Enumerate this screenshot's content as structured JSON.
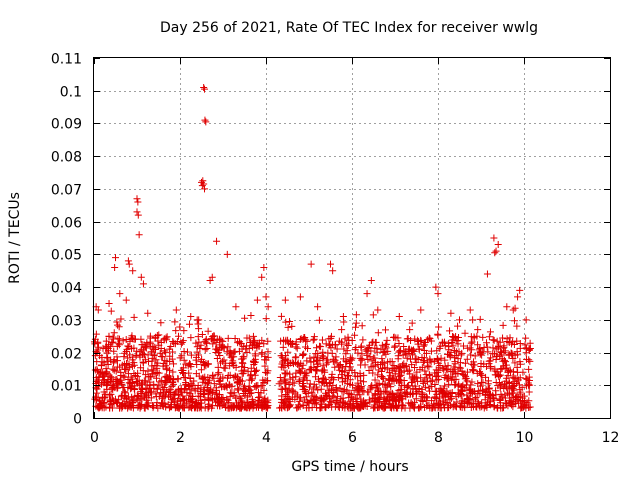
{
  "chart_data": {
    "type": "scatter",
    "title": "Day 256 of 2021, Rate Of TEC Index for receiver wwlg",
    "xlabel": "GPS time / hours",
    "ylabel": "ROTI / TECUs",
    "xlim": [
      0,
      12
    ],
    "ylim": [
      0,
      0.11
    ],
    "xticks": [
      0,
      2,
      4,
      6,
      8,
      10,
      12
    ],
    "xtick_labels": [
      "0",
      "2",
      "4",
      "6",
      "8",
      "10",
      "12"
    ],
    "yticks": [
      0,
      0.01,
      0.02,
      0.03,
      0.04,
      0.05,
      0.06,
      0.07,
      0.08,
      0.09,
      0.1,
      0.11
    ],
    "ytick_labels": [
      "0",
      "0.01",
      "0.02",
      "0.03",
      "0.04",
      "0.05",
      "0.06",
      "0.07",
      "0.08",
      "0.09",
      "0.1",
      "0.11"
    ],
    "grid": true,
    "marker": "+",
    "color": "#e00000",
    "data_coverage_hours": [
      0,
      10.15
    ],
    "data_gap_hours": [
      4.05,
      4.3
    ],
    "baseline_range": [
      0.003,
      0.025
    ],
    "series": [
      {
        "name": "ROTI",
        "points": [
          [
            2.55,
            0.101
          ],
          [
            2.57,
            0.1005
          ],
          [
            2.58,
            0.091
          ],
          [
            2.6,
            0.0905
          ],
          [
            2.5,
            0.072
          ],
          [
            2.52,
            0.071
          ],
          [
            2.55,
            0.0715
          ],
          [
            2.57,
            0.07
          ],
          [
            2.53,
            0.0725
          ],
          [
            1.0,
            0.067
          ],
          [
            1.02,
            0.066
          ],
          [
            1.0,
            0.063
          ],
          [
            1.03,
            0.062
          ],
          [
            1.05,
            0.056
          ],
          [
            2.85,
            0.054
          ],
          [
            3.1,
            0.05
          ],
          [
            9.3,
            0.055
          ],
          [
            9.35,
            0.051
          ],
          [
            9.32,
            0.0505
          ],
          [
            9.4,
            0.053
          ],
          [
            0.5,
            0.049
          ],
          [
            0.48,
            0.046
          ],
          [
            0.8,
            0.048
          ],
          [
            0.82,
            0.047
          ],
          [
            0.9,
            0.045
          ],
          [
            1.1,
            0.043
          ],
          [
            1.15,
            0.041
          ],
          [
            3.95,
            0.046
          ],
          [
            3.9,
            0.043
          ],
          [
            4.0,
            0.037
          ],
          [
            4.05,
            0.034
          ],
          [
            5.05,
            0.047
          ],
          [
            5.5,
            0.047
          ],
          [
            5.55,
            0.045
          ],
          [
            6.45,
            0.042
          ],
          [
            7.95,
            0.04
          ],
          [
            8.0,
            0.038
          ],
          [
            9.15,
            0.044
          ],
          [
            9.9,
            0.039
          ],
          [
            9.85,
            0.037
          ],
          [
            2.75,
            0.043
          ],
          [
            2.7,
            0.042
          ],
          [
            0.05,
            0.034
          ],
          [
            0.1,
            0.033
          ],
          [
            0.35,
            0.035
          ],
          [
            0.6,
            0.038
          ],
          [
            0.75,
            0.036
          ],
          [
            1.25,
            0.032
          ],
          [
            2.25,
            0.031
          ],
          [
            2.4,
            0.03
          ],
          [
            3.3,
            0.034
          ],
          [
            3.8,
            0.036
          ],
          [
            4.45,
            0.036
          ],
          [
            4.8,
            0.037
          ],
          [
            5.2,
            0.034
          ],
          [
            5.8,
            0.031
          ],
          [
            6.1,
            0.029
          ],
          [
            6.35,
            0.038
          ],
          [
            6.6,
            0.033
          ],
          [
            7.1,
            0.031
          ],
          [
            7.4,
            0.029
          ],
          [
            7.6,
            0.033
          ],
          [
            8.3,
            0.032
          ],
          [
            8.5,
            0.03
          ],
          [
            8.75,
            0.033
          ],
          [
            9.6,
            0.034
          ],
          [
            9.75,
            0.033
          ],
          [
            10.05,
            0.03
          ]
        ]
      }
    ]
  }
}
